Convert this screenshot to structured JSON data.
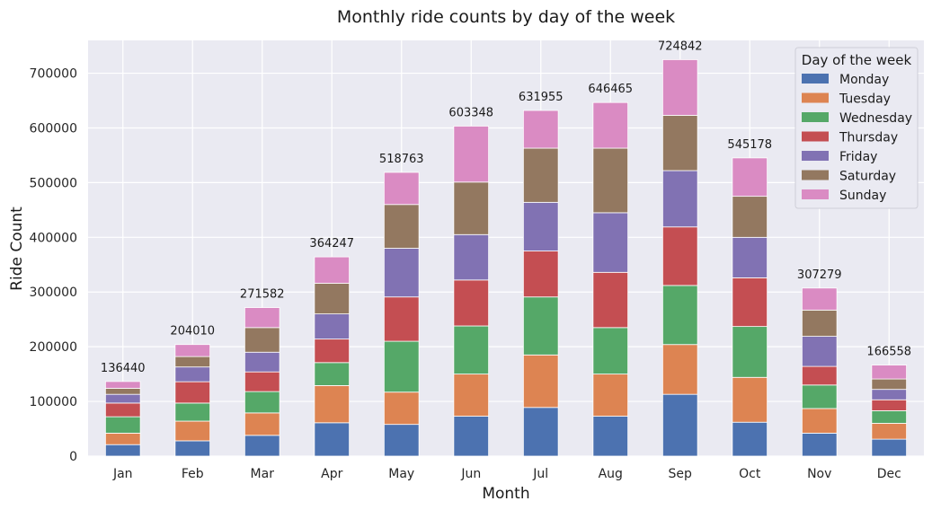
{
  "chart_data": {
    "type": "bar",
    "stacked": true,
    "title": "Monthly ride counts by day of the week",
    "xlabel": "Month",
    "ylabel": "Ride Count",
    "categories": [
      "Jan",
      "Feb",
      "Mar",
      "Apr",
      "May",
      "Jun",
      "Jul",
      "Aug",
      "Sep",
      "Oct",
      "Nov",
      "Dec"
    ],
    "ylim": [
      0,
      760000
    ],
    "yticks": [
      0,
      100000,
      200000,
      300000,
      400000,
      500000,
      600000,
      700000
    ],
    "grid": true,
    "legend": {
      "title": "Day of the week",
      "placement": "top-right"
    },
    "series": [
      {
        "name": "Monday",
        "color": "#4c72b0",
        "values": [
          21000,
          28000,
          38000,
          61000,
          58000,
          73000,
          89000,
          73000,
          113000,
          62000,
          42000,
          31000
        ]
      },
      {
        "name": "Tuesday",
        "color": "#dd8452",
        "values": [
          21000,
          36000,
          41000,
          68000,
          59000,
          77000,
          96000,
          77000,
          91000,
          82000,
          45000,
          29000
        ]
      },
      {
        "name": "Wednesday",
        "color": "#55a868",
        "values": [
          30000,
          33000,
          39000,
          42000,
          93000,
          88000,
          106000,
          85000,
          108000,
          93000,
          43000,
          23000
        ]
      },
      {
        "name": "Thursday",
        "color": "#c44e52",
        "values": [
          25000,
          39000,
          36000,
          43000,
          81000,
          84000,
          84000,
          101000,
          107000,
          89000,
          34000,
          20000
        ]
      },
      {
        "name": "Friday",
        "color": "#8172b3",
        "values": [
          16000,
          27000,
          36000,
          46000,
          89000,
          83000,
          89000,
          109000,
          103000,
          74000,
          55000,
          19000
        ]
      },
      {
        "name": "Saturday",
        "color": "#937860",
        "values": [
          11000,
          19000,
          45000,
          56000,
          80000,
          96000,
          99000,
          118000,
          101000,
          75000,
          48000,
          19000
        ]
      },
      {
        "name": "Sunday",
        "color": "#da8bc3",
        "values": [
          12440,
          22010,
          36582,
          48247,
          58763,
          102348,
          68955,
          83465,
          101842,
          70178,
          40279,
          25558
        ]
      }
    ],
    "totals": [
      136440,
      204010,
      271582,
      364247,
      518763,
      603348,
      631955,
      646465,
      724842,
      545178,
      307279,
      166558
    ]
  }
}
